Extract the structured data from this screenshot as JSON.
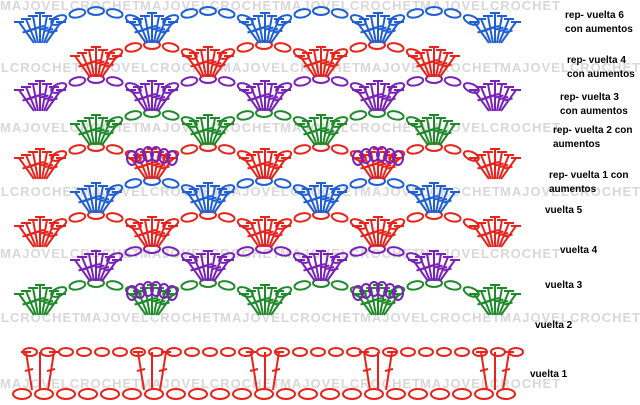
{
  "watermark": "MAJOVELCROCHET",
  "labels": [
    {
      "lines": [
        "rep- vuelta 6",
        "con aumentos"
      ]
    },
    {
      "lines": [
        "rep- vuelta 4",
        "con aumentos"
      ]
    },
    {
      "lines": [
        "rep- vuelta 3",
        "con aumentos"
      ]
    },
    {
      "lines": [
        "rep- vuelta 2 con",
        "aumentos"
      ]
    },
    {
      "lines": [
        "rep- vuelta 1 con",
        "aumentos"
      ]
    },
    {
      "lines": [
        "vuelta 5"
      ]
    },
    {
      "lines": [
        "vuelta 4"
      ]
    },
    {
      "lines": [
        "vuelta 3"
      ]
    },
    {
      "lines": [
        "vuelta 2"
      ]
    },
    {
      "lines": [
        "vuelta 1"
      ]
    }
  ]
}
